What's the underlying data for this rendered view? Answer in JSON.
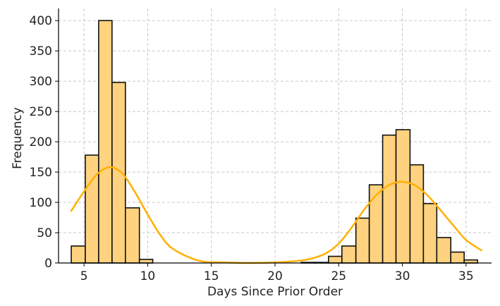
{
  "chart_data": {
    "type": "bar",
    "subtype": "histogram-with-density",
    "title": "",
    "xlabel": "Days Since Prior Order",
    "ylabel": "Frequency",
    "xlim": [
      3,
      37
    ],
    "ylim": [
      0,
      420
    ],
    "xticks": [
      5,
      10,
      15,
      20,
      25,
      30,
      35
    ],
    "yticks": [
      0,
      50,
      100,
      150,
      200,
      250,
      300,
      350,
      400
    ],
    "grid": true,
    "legend": "none",
    "colors": {
      "bar_fill": "#FFD27F",
      "bar_edge": "#111111",
      "kde_line": "#FFB000",
      "grid": "#C8C8C8",
      "axis": "#000000"
    },
    "bins": [
      {
        "x0": 4.0,
        "x1": 5.1,
        "count": 28
      },
      {
        "x0": 5.1,
        "x1": 6.15,
        "count": 178
      },
      {
        "x0": 6.15,
        "x1": 7.2,
        "count": 400
      },
      {
        "x0": 7.2,
        "x1": 8.25,
        "count": 298
      },
      {
        "x0": 8.25,
        "x1": 9.35,
        "count": 91
      },
      {
        "x0": 9.35,
        "x1": 10.4,
        "count": 6
      },
      {
        "x0": 22.05,
        "x1": 23.15,
        "count": 1
      },
      {
        "x0": 23.15,
        "x1": 24.2,
        "count": 1
      },
      {
        "x0": 24.2,
        "x1": 25.25,
        "count": 11
      },
      {
        "x0": 25.25,
        "x1": 26.35,
        "count": 28
      },
      {
        "x0": 26.35,
        "x1": 27.4,
        "count": 74
      },
      {
        "x0": 27.4,
        "x1": 28.45,
        "count": 129
      },
      {
        "x0": 28.45,
        "x1": 29.5,
        "count": 211
      },
      {
        "x0": 29.5,
        "x1": 30.6,
        "count": 220
      },
      {
        "x0": 30.6,
        "x1": 31.65,
        "count": 162
      },
      {
        "x0": 31.65,
        "x1": 32.7,
        "count": 98
      },
      {
        "x0": 32.7,
        "x1": 33.8,
        "count": 42
      },
      {
        "x0": 33.8,
        "x1": 34.85,
        "count": 18
      },
      {
        "x0": 34.85,
        "x1": 35.9,
        "count": 5
      }
    ],
    "density_curve": {
      "x": [
        4,
        5,
        6,
        7,
        8,
        9,
        10,
        11,
        12,
        14,
        16,
        18,
        20,
        22,
        23,
        24,
        25,
        26,
        27,
        28,
        29,
        30,
        31,
        32,
        33,
        34,
        35,
        36.2
      ],
      "y": [
        86,
        118,
        146,
        158,
        148,
        117,
        80,
        46,
        23,
        4,
        1,
        0,
        1,
        4,
        8,
        16,
        32,
        58,
        88,
        113,
        129,
        134,
        128,
        111,
        87,
        62,
        38,
        21
      ]
    }
  }
}
